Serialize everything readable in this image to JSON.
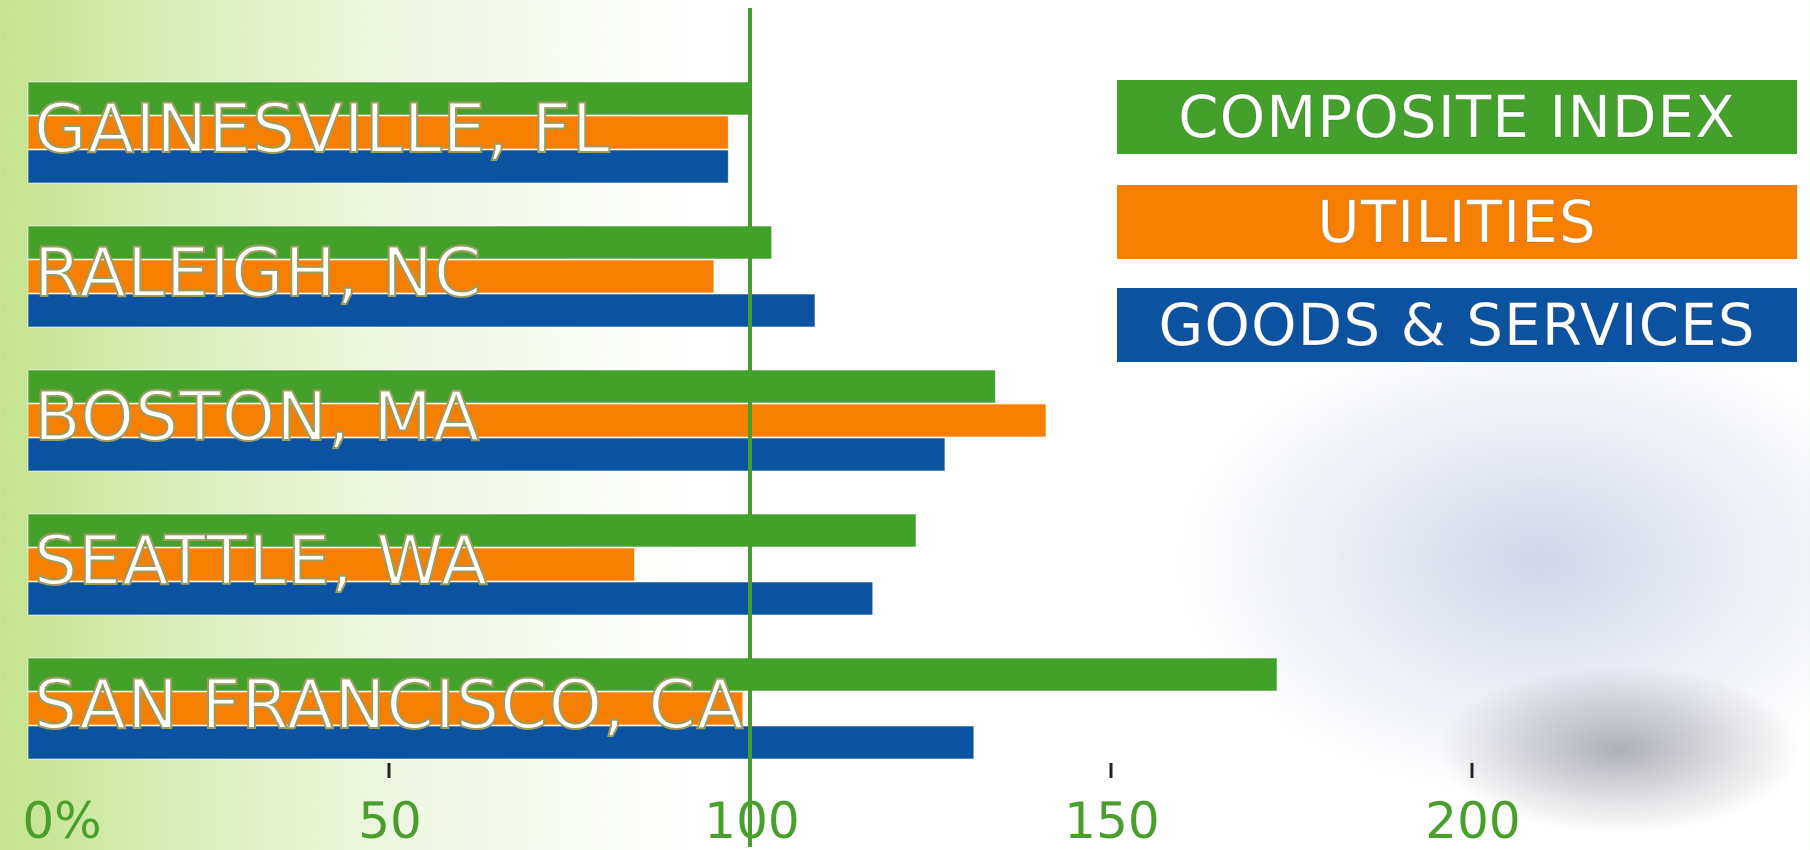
{
  "chart_data": {
    "type": "bar",
    "orientation": "horizontal",
    "categories": [
      "GAINESVILLE, FL",
      "RALEIGH, NC",
      "BOSTON, MA",
      "SEATTLE, WA",
      "SAN FRANCISCO, CA"
    ],
    "series": [
      {
        "name": "COMPOSITE INDEX",
        "color": "#43a02b",
        "values": [
          100,
          103,
          134,
          123,
          173
        ]
      },
      {
        "name": "UTILITIES",
        "color": "#f77f00",
        "values": [
          97,
          95,
          141,
          84,
          99
        ]
      },
      {
        "name": "GOODS & SERVICES",
        "color": "#0b52a0",
        "values": [
          97,
          109,
          127,
          117,
          131
        ]
      }
    ],
    "xticks": [
      "0%",
      "50",
      "100",
      "150",
      "200"
    ],
    "xlim": [
      0,
      250
    ],
    "reference_line": 100,
    "legend_position": "top-right",
    "grid": false
  }
}
